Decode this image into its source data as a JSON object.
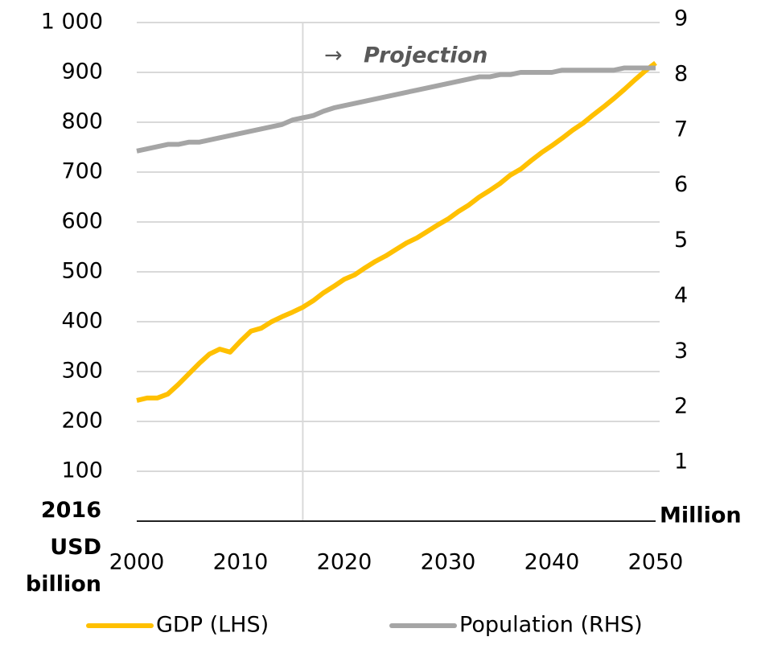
{
  "chart_data": {
    "type": "line",
    "y_label": "2016 USD billion",
    "y2_label": "Million",
    "annotation": "Projection",
    "projection_start": 2016,
    "x": [
      2000,
      2001,
      2002,
      2003,
      2004,
      2005,
      2006,
      2007,
      2008,
      2009,
      2010,
      2011,
      2012,
      2013,
      2014,
      2015,
      2016,
      2017,
      2018,
      2019,
      2020,
      2021,
      2022,
      2023,
      2024,
      2025,
      2026,
      2027,
      2028,
      2029,
      2030,
      2031,
      2032,
      2033,
      2034,
      2035,
      2036,
      2037,
      2038,
      2039,
      2040,
      2041,
      2042,
      2043,
      2044,
      2045,
      2046,
      2047,
      2048,
      2049,
      2050
    ],
    "xlim": [
      2000,
      2050
    ],
    "xticks": [
      2000,
      2010,
      2020,
      2030,
      2040,
      2050
    ],
    "ylim": [
      0,
      1000
    ],
    "yticks": [
      100,
      200,
      300,
      400,
      500,
      600,
      700,
      800,
      900,
      {
        "value": 1000,
        "label": "1 000"
      }
    ],
    "y2lim": [
      0,
      9
    ],
    "y2ticks": [
      1,
      2,
      3,
      4,
      5,
      6,
      7,
      8,
      9
    ],
    "grid": true,
    "legend": "bottom",
    "series": [
      {
        "name": "GDP (LHS)",
        "color": "#ffc000",
        "values": [
          242,
          247,
          247,
          255,
          274,
          295,
          316,
          335,
          345,
          339,
          361,
          381,
          387,
          400,
          410,
          419,
          429,
          442,
          458,
          471,
          485,
          494,
          508,
          521,
          532,
          545,
          558,
          568,
          581,
          594,
          606,
          621,
          634,
          650,
          663,
          677,
          694,
          706,
          723,
          739,
          753,
          768,
          784,
          798,
          815,
          831,
          848,
          866,
          885,
          903,
          919
        ]
      },
      {
        "name": "Population (RHS)",
        "color": "#a5a5a5",
        "axis": "y2",
        "values": [
          6.68,
          6.72,
          6.76,
          6.8,
          6.8,
          6.84,
          6.84,
          6.88,
          6.92,
          6.96,
          7.0,
          7.04,
          7.08,
          7.12,
          7.16,
          7.24,
          7.28,
          7.32,
          7.4,
          7.46,
          7.5,
          7.54,
          7.58,
          7.62,
          7.66,
          7.7,
          7.74,
          7.78,
          7.82,
          7.86,
          7.9,
          7.94,
          7.98,
          8.02,
          8.02,
          8.06,
          8.06,
          8.1,
          8.1,
          8.1,
          8.1,
          8.14,
          8.14,
          8.14,
          8.14,
          8.14,
          8.14,
          8.18,
          8.18,
          8.18,
          8.18
        ]
      }
    ]
  }
}
